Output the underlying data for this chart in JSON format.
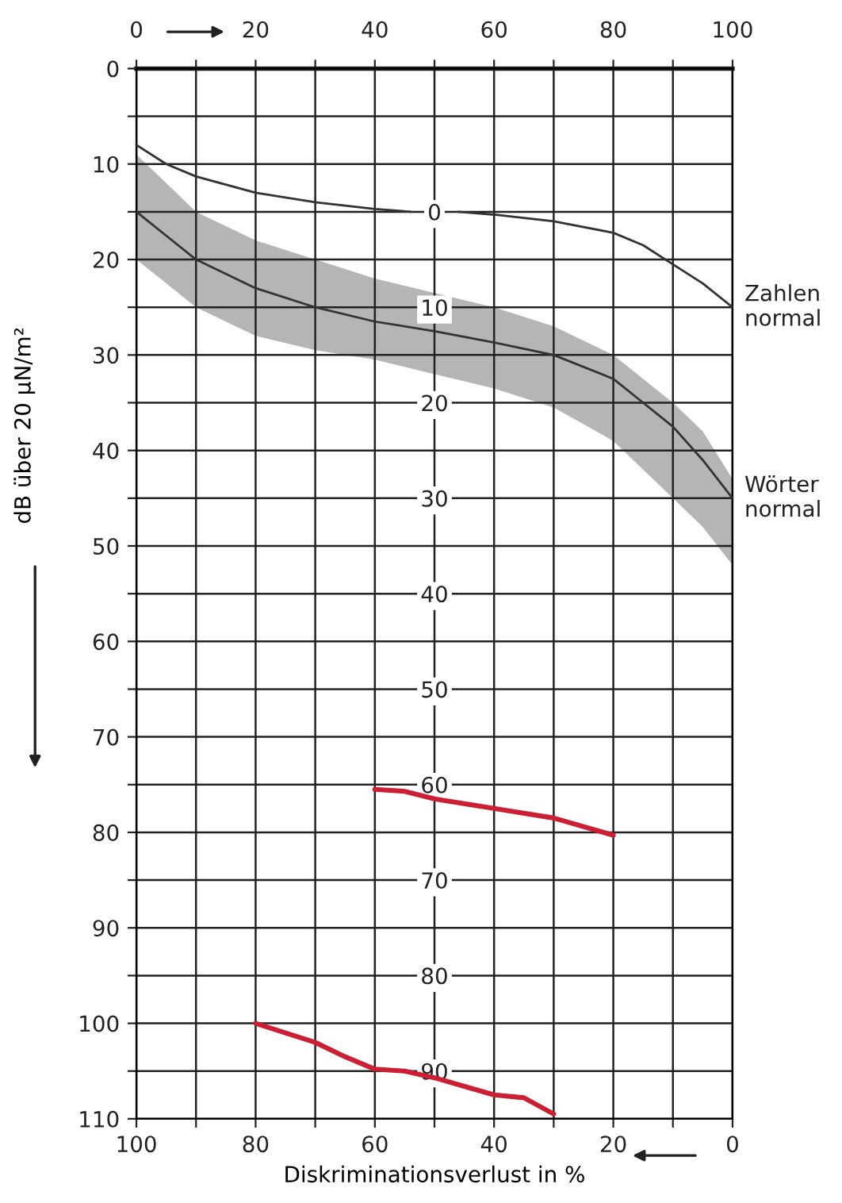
{
  "chart_data": {
    "type": "line",
    "xlabel": "Diskriminationsverlust in %",
    "ylabel": "dB über 20 µN/m²",
    "xlim": [
      100,
      0
    ],
    "xticks": [
      100,
      {
        "value": 90,
        "label": null
      },
      80,
      {
        "value": 70,
        "label": null
      },
      60,
      {
        "value": 50,
        "label": null
      },
      40,
      {
        "value": 30,
        "label": null
      },
      20,
      {
        "value": 10,
        "label": null
      },
      0
    ],
    "x2lim": [
      0,
      100
    ],
    "x2ticks": [
      0,
      {
        "value": 10,
        "label": null
      },
      20,
      {
        "value": 30,
        "label": null
      },
      40,
      {
        "value": 50,
        "label": null
      },
      60,
      {
        "value": 70,
        "label": null
      },
      80,
      {
        "value": 90,
        "label": null
      },
      100
    ],
    "ylim": [
      110,
      0
    ],
    "yticks": [
      0,
      {
        "value": 5,
        "label": null
      },
      10,
      {
        "value": 15,
        "label": null
      },
      20,
      {
        "value": 25,
        "label": null
      },
      30,
      {
        "value": 35,
        "label": null
      },
      40,
      {
        "value": 45,
        "label": null
      },
      50,
      {
        "value": 55,
        "label": null
      },
      60,
      {
        "value": 65,
        "label": null
      },
      70,
      {
        "value": 75,
        "label": null
      },
      80,
      {
        "value": 85,
        "label": null
      },
      90,
      {
        "value": 95,
        "label": null
      },
      100,
      {
        "value": 105,
        "label": null
      },
      110
    ],
    "y3lim": [
      95,
      -15
    ],
    "y3ticks": [
      0,
      10,
      20,
      30,
      40,
      50,
      60,
      70,
      80,
      90
    ],
    "grid": true,
    "line_style": "solid",
    "series": [
      {
        "name": "Zahlen normal",
        "color": "#333333",
        "x": [
          100,
          95,
          90,
          80,
          70,
          60,
          54,
          50,
          46,
          40,
          30,
          20,
          15,
          10,
          5,
          0
        ],
        "values": [
          8,
          10,
          11.3,
          13,
          14,
          14.7,
          15,
          null,
          15,
          15.3,
          16,
          17.2,
          18.5,
          20.5,
          22.5,
          25
        ]
      },
      {
        "name": "Wörter normal",
        "color": "#333333",
        "x": [
          100,
          95,
          90,
          80,
          70,
          60,
          50,
          40,
          30,
          20,
          15,
          10,
          5,
          0
        ],
        "values": [
          15,
          17.5,
          20,
          23,
          25,
          26.5,
          27.5,
          28.7,
          30,
          32.5,
          35,
          37.5,
          41,
          45
        ],
        "lower": [
          9,
          12,
          15,
          18,
          20,
          22,
          23.5,
          25,
          27,
          30,
          32.5,
          35,
          38,
          43
        ],
        "upper": [
          20,
          22.5,
          25,
          28,
          29.5,
          30.5,
          32,
          33.5,
          35.5,
          39,
          42,
          45,
          48,
          52
        ]
      },
      {
        "color": "#cc1f33",
        "x": [
          60,
          55,
          50,
          40,
          30,
          20
        ],
        "values": [
          75.5,
          75.7,
          76.5,
          77.5,
          78.5,
          80.3
        ]
      },
      {
        "color": "#cc1f33",
        "x": [
          80,
          75,
          70,
          65,
          60,
          55,
          50,
          45,
          40,
          35,
          30
        ],
        "values": [
          100,
          101,
          102,
          103.5,
          104.8,
          105,
          105.7,
          106.6,
          107.5,
          107.8,
          109.5
        ]
      }
    ]
  }
}
